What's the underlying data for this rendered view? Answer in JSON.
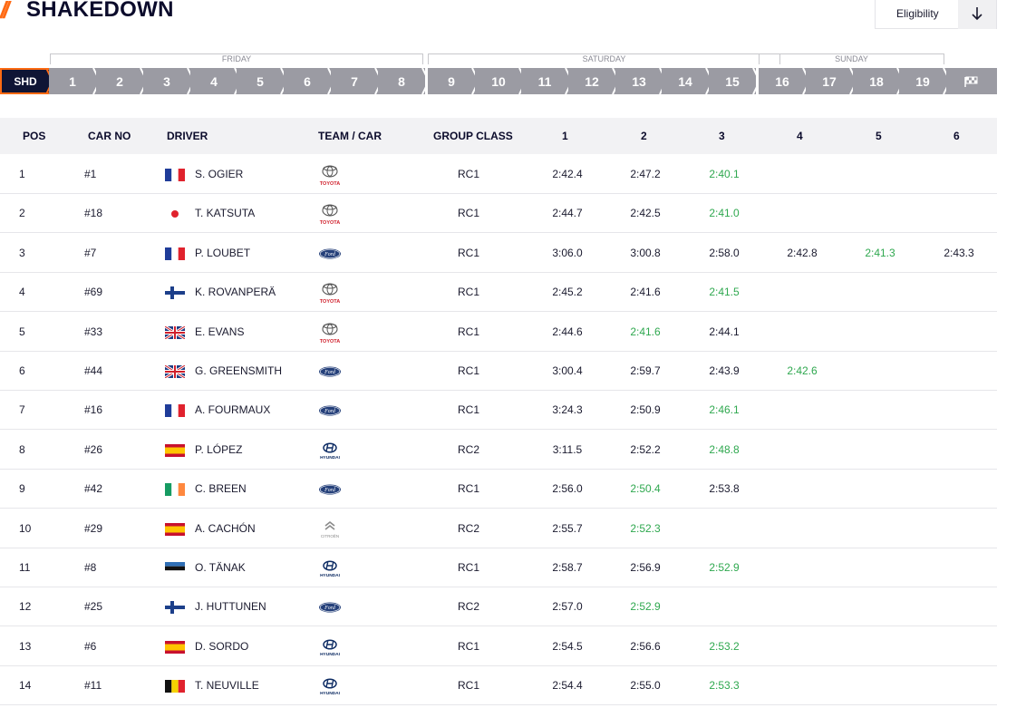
{
  "header": {
    "title": "SHAKEDOWN",
    "eligibility_label": "Eligibility",
    "download_icon": "arrow-down-icon"
  },
  "days": [
    {
      "label": "FRIDAY"
    },
    {
      "label": "SATURDAY"
    },
    {
      "label": "SUNDAY"
    }
  ],
  "stages": [
    "SHD",
    "1",
    "2",
    "3",
    "4",
    "5",
    "6",
    "7",
    "8",
    "9",
    "10",
    "11",
    "12",
    "13",
    "14",
    "15",
    "16",
    "17",
    "18",
    "19"
  ],
  "finish_icon": "checkered-flag-icon",
  "columns": {
    "pos": "POS",
    "car_no": "CAR NO",
    "driver": "DRIVER",
    "team_car": "TEAM / CAR",
    "group_class": "GROUP CLASS",
    "runs": [
      "1",
      "2",
      "3",
      "4",
      "5",
      "6"
    ]
  },
  "colors": {
    "accent": "#ff6a13",
    "fastest": "#2fa84f",
    "navy": "#0f1535",
    "stage_grey": "#9b9ba3"
  },
  "rows": [
    {
      "pos": "1",
      "car": "#1",
      "flag": "france",
      "driver": "S. OGIER",
      "team": "toyota",
      "class": "RC1",
      "times": [
        "2:42.4",
        "2:47.2",
        "2:40.1",
        "",
        "",
        ""
      ],
      "best": 2
    },
    {
      "pos": "2",
      "car": "#18",
      "flag": "japan",
      "driver": "T. KATSUTA",
      "team": "toyota",
      "class": "RC1",
      "times": [
        "2:44.7",
        "2:42.5",
        "2:41.0",
        "",
        "",
        ""
      ],
      "best": 2
    },
    {
      "pos": "3",
      "car": "#7",
      "flag": "france",
      "driver": "P. LOUBET",
      "team": "ford",
      "class": "RC1",
      "times": [
        "3:06.0",
        "3:00.8",
        "2:58.0",
        "2:42.8",
        "2:41.3",
        "2:43.3"
      ],
      "best": 4
    },
    {
      "pos": "4",
      "car": "#69",
      "flag": "finland",
      "driver": "K. ROVANPERÄ",
      "team": "toyota",
      "class": "RC1",
      "times": [
        "2:45.2",
        "2:41.6",
        "2:41.5",
        "",
        "",
        ""
      ],
      "best": 2
    },
    {
      "pos": "5",
      "car": "#33",
      "flag": "uk",
      "driver": "E. EVANS",
      "team": "toyota",
      "class": "RC1",
      "times": [
        "2:44.6",
        "2:41.6",
        "2:44.1",
        "",
        "",
        ""
      ],
      "best": 1
    },
    {
      "pos": "6",
      "car": "#44",
      "flag": "uk",
      "driver": "G. GREENSMITH",
      "team": "ford",
      "class": "RC1",
      "times": [
        "3:00.4",
        "2:59.7",
        "2:43.9",
        "2:42.6",
        "",
        ""
      ],
      "best": 3
    },
    {
      "pos": "7",
      "car": "#16",
      "flag": "france",
      "driver": "A. FOURMAUX",
      "team": "ford",
      "class": "RC1",
      "times": [
        "3:24.3",
        "2:50.9",
        "2:46.1",
        "",
        "",
        ""
      ],
      "best": 2
    },
    {
      "pos": "8",
      "car": "#26",
      "flag": "spain",
      "driver": "P. LÓPEZ",
      "team": "hyundai",
      "class": "RC2",
      "times": [
        "3:11.5",
        "2:52.2",
        "2:48.8",
        "",
        "",
        ""
      ],
      "best": 2
    },
    {
      "pos": "9",
      "car": "#42",
      "flag": "ireland",
      "driver": "C. BREEN",
      "team": "ford",
      "class": "RC1",
      "times": [
        "2:56.0",
        "2:50.4",
        "2:53.8",
        "",
        "",
        ""
      ],
      "best": 1
    },
    {
      "pos": "10",
      "car": "#29",
      "flag": "spain",
      "driver": "A. CACHÓN",
      "team": "citroen",
      "class": "RC2",
      "times": [
        "2:55.7",
        "2:52.3",
        "",
        "",
        "",
        ""
      ],
      "best": 1
    },
    {
      "pos": "11",
      "car": "#8",
      "flag": "estonia",
      "driver": "O. TÄNAK",
      "team": "hyundai",
      "class": "RC1",
      "times": [
        "2:58.7",
        "2:56.9",
        "2:52.9",
        "",
        "",
        ""
      ],
      "best": 2
    },
    {
      "pos": "12",
      "car": "#25",
      "flag": "finland",
      "driver": "J. HUTTUNEN",
      "team": "ford",
      "class": "RC2",
      "times": [
        "2:57.0",
        "2:52.9",
        "",
        "",
        "",
        ""
      ],
      "best": 1
    },
    {
      "pos": "13",
      "car": "#6",
      "flag": "spain",
      "driver": "D. SORDO",
      "team": "hyundai",
      "class": "RC1",
      "times": [
        "2:54.5",
        "2:56.6",
        "2:53.2",
        "",
        "",
        ""
      ],
      "best": 2
    },
    {
      "pos": "14",
      "car": "#11",
      "flag": "belgium",
      "driver": "T. NEUVILLE",
      "team": "hyundai",
      "class": "RC1",
      "times": [
        "2:54.4",
        "2:55.0",
        "2:53.3",
        "",
        "",
        ""
      ],
      "best": 2
    }
  ],
  "logo_text": {
    "toyota": "TOYOTA",
    "hyundai": "HYUNDAI",
    "citroen": "CITROËN"
  }
}
